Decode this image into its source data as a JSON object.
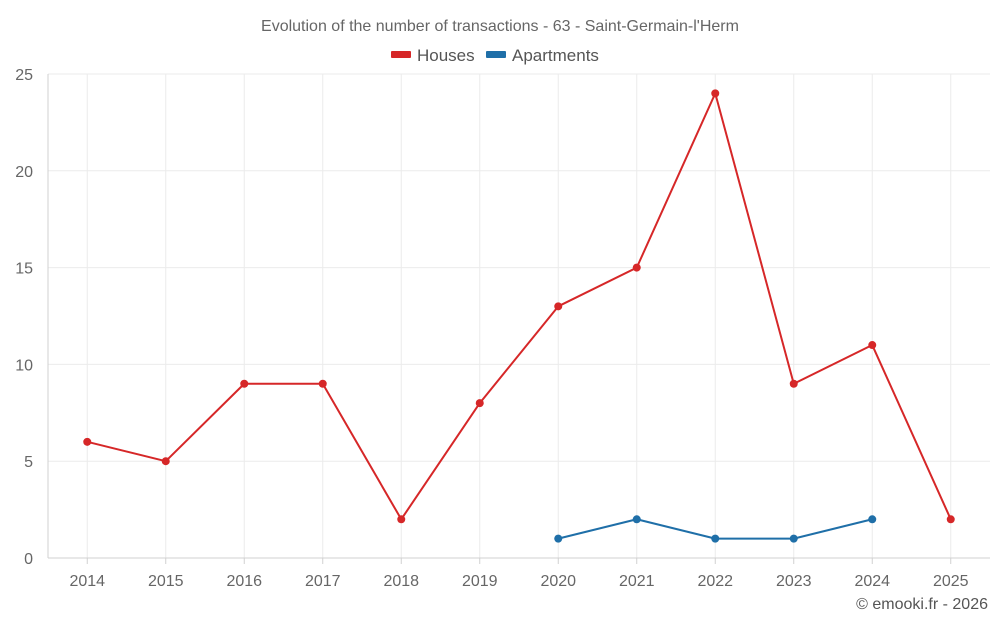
{
  "chart_data": {
    "type": "line",
    "title": "Evolution of the number of transactions - 63 - Saint-Germain-l'Herm",
    "categories": [
      "2014",
      "2015",
      "2016",
      "2017",
      "2018",
      "2019",
      "2020",
      "2021",
      "2022",
      "2023",
      "2024",
      "2025"
    ],
    "series": [
      {
        "name": "Houses",
        "color": "#d62728",
        "values": [
          6,
          5,
          9,
          9,
          2,
          8,
          13,
          15,
          24,
          9,
          11,
          2
        ]
      },
      {
        "name": "Apartments",
        "color": "#1f6fa8",
        "values": [
          null,
          null,
          null,
          null,
          null,
          null,
          1,
          2,
          1,
          1,
          2,
          null
        ]
      }
    ],
    "ylim": [
      0,
      25
    ],
    "yticks": [
      "0",
      "5",
      "10",
      "15",
      "20",
      "25"
    ],
    "xlabel": "",
    "ylabel": "",
    "grid": true,
    "legend_position": "top-center"
  },
  "credit": "© emooki.fr - 2026"
}
